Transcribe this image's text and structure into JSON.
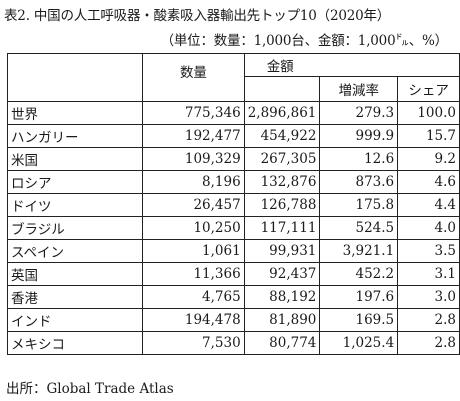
{
  "title": "表2. 中国の人工呼吸器・酸素吸入器輸出先トップ10（2020年）",
  "unit": "（単位：数量：1,000台、金額：1,000㌦、%）",
  "headers": {
    "quantity": "数量",
    "amount": "金額",
    "growth": "増減率",
    "share": "シェア"
  },
  "rows": [
    {
      "country": "世界",
      "quantity": "775,346",
      "amount": "2,896,861",
      "growth": "279.3",
      "share": "100.0"
    },
    {
      "country": "ハンガリー",
      "quantity": "192,477",
      "amount": "454,922",
      "growth": "999.9",
      "share": "15.7"
    },
    {
      "country": "米国",
      "quantity": "109,329",
      "amount": "267,305",
      "growth": "12.6",
      "share": "9.2"
    },
    {
      "country": "ロシア",
      "quantity": "8,196",
      "amount": "132,876",
      "growth": "873.6",
      "share": "4.6"
    },
    {
      "country": "ドイツ",
      "quantity": "26,457",
      "amount": "126,788",
      "growth": "175.8",
      "share": "4.4"
    },
    {
      "country": "ブラジル",
      "quantity": "10,250",
      "amount": "117,111",
      "growth": "524.5",
      "share": "4.0"
    },
    {
      "country": "スペイン",
      "quantity": "1,061",
      "amount": "99,931",
      "growth": "3,921.1",
      "share": "3.5"
    },
    {
      "country": "英国",
      "quantity": "11,366",
      "amount": "92,437",
      "growth": "452.2",
      "share": "3.1"
    },
    {
      "country": "香港",
      "quantity": "4,765",
      "amount": "88,192",
      "growth": "197.6",
      "share": "3.0"
    },
    {
      "country": "インド",
      "quantity": "194,478",
      "amount": "81,890",
      "growth": "169.5",
      "share": "2.8"
    },
    {
      "country": "メキシコ",
      "quantity": "7,530",
      "amount": "80,774",
      "growth": "1,025.4",
      "share": "2.8"
    }
  ],
  "source": "出所：Global Trade Atlas"
}
